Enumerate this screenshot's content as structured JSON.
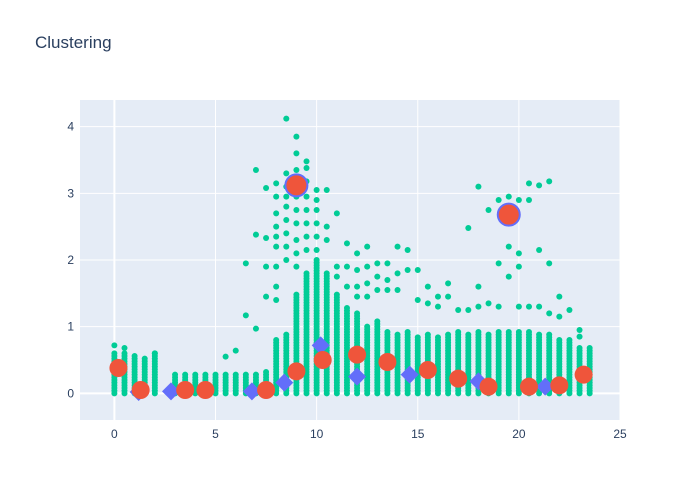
{
  "chart_data": {
    "type": "scatter",
    "title": "Clustering",
    "xlabel": "",
    "ylabel": "",
    "xlim": [
      -1.7,
      25
    ],
    "ylim": [
      -0.4,
      4.4
    ],
    "x_ticks": [
      0,
      5,
      10,
      15,
      20,
      25
    ],
    "y_ticks": [
      0,
      1,
      2,
      3,
      4
    ],
    "grid": true,
    "legend": "none",
    "colors": {
      "background": "#e5ecf6",
      "points": "#00cc96",
      "centroid_a": "#ef553b",
      "centroid_b": "#636efa",
      "text": "#2a3f5f"
    },
    "column_x": [
      0,
      0.5,
      1,
      1.5,
      2,
      3,
      3.5,
      4,
      4.5,
      5,
      5.5,
      6,
      6.5,
      7,
      7.5,
      8,
      8.5,
      9,
      9.5,
      10,
      10.5,
      11,
      11.5,
      12,
      12.5,
      13,
      13.5,
      14,
      14.5,
      15,
      15.5,
      16,
      16.5,
      17,
      17.5,
      18,
      18.5,
      19,
      19.5,
      20,
      20.5,
      21,
      21.5,
      22,
      22.5,
      23,
      23.5
    ],
    "column_top": [
      0.62,
      0.6,
      0.58,
      0.55,
      0.6,
      0.28,
      0.3,
      0.3,
      0.3,
      0.28,
      0.3,
      0.3,
      0.3,
      0.3,
      0.32,
      0.8,
      0.9,
      1.5,
      1.8,
      2.0,
      1.8,
      1.5,
      1.3,
      1.2,
      1.0,
      1.1,
      0.95,
      0.9,
      0.95,
      0.85,
      0.9,
      0.85,
      0.9,
      0.95,
      0.9,
      0.92,
      0.9,
      0.95,
      0.95,
      0.95,
      0.92,
      0.9,
      0.88,
      0.82,
      0.8,
      0.7,
      0.68
    ],
    "outliers": [
      [
        0,
        0.72
      ],
      [
        0.5,
        0.68
      ],
      [
        2,
        0.6
      ],
      [
        5.5,
        0.55
      ],
      [
        6,
        0.64
      ],
      [
        6.5,
        1.17
      ],
      [
        6.5,
        1.95
      ],
      [
        7,
        3.35
      ],
      [
        7,
        2.38
      ],
      [
        7,
        0.97
      ],
      [
        7.5,
        2.33
      ],
      [
        7.5,
        1.45
      ],
      [
        7.5,
        3.08
      ],
      [
        7.5,
        1.9
      ],
      [
        8,
        3.15
      ],
      [
        8,
        2.95
      ],
      [
        8,
        2.7
      ],
      [
        8,
        2.5
      ],
      [
        8,
        2.35
      ],
      [
        8,
        2.2
      ],
      [
        8,
        1.9
      ],
      [
        8,
        1.6
      ],
      [
        8,
        1.4
      ],
      [
        8.5,
        4.12
      ],
      [
        8.5,
        3.3
      ],
      [
        8.5,
        3.1
      ],
      [
        8.5,
        2.95
      ],
      [
        8.5,
        2.8
      ],
      [
        8.5,
        2.6
      ],
      [
        8.5,
        2.4
      ],
      [
        8.5,
        2.2
      ],
      [
        8.5,
        2.0
      ],
      [
        9,
        3.85
      ],
      [
        9,
        3.6
      ],
      [
        9,
        3.35
      ],
      [
        9,
        3.2
      ],
      [
        9,
        2.95
      ],
      [
        9,
        2.75
      ],
      [
        9,
        2.55
      ],
      [
        9,
        2.3
      ],
      [
        9,
        2.1
      ],
      [
        9,
        1.9
      ],
      [
        9.5,
        3.48
      ],
      [
        9.5,
        3.38
      ],
      [
        9.5,
        3.18
      ],
      [
        9.5,
        2.95
      ],
      [
        9.5,
        2.75
      ],
      [
        9.5,
        2.55
      ],
      [
        9.5,
        2.35
      ],
      [
        9.5,
        2.15
      ],
      [
        10,
        3.05
      ],
      [
        10,
        2.9
      ],
      [
        10,
        2.75
      ],
      [
        10,
        2.55
      ],
      [
        10,
        2.35
      ],
      [
        10,
        2.15
      ],
      [
        10.5,
        3.05
      ],
      [
        10.5,
        2.5
      ],
      [
        10.5,
        2.3
      ],
      [
        11,
        2.7
      ],
      [
        11,
        1.9
      ],
      [
        11,
        1.75
      ],
      [
        11.5,
        2.25
      ],
      [
        11.5,
        1.9
      ],
      [
        11.5,
        1.6
      ],
      [
        12,
        2.1
      ],
      [
        12,
        1.85
      ],
      [
        12,
        1.6
      ],
      [
        12,
        1.45
      ],
      [
        12.5,
        2.2
      ],
      [
        12.5,
        1.9
      ],
      [
        12.5,
        1.65
      ],
      [
        12.5,
        1.45
      ],
      [
        13,
        1.95
      ],
      [
        13,
        1.75
      ],
      [
        13,
        1.55
      ],
      [
        13.5,
        1.95
      ],
      [
        13.5,
        1.7
      ],
      [
        13.5,
        1.55
      ],
      [
        14,
        2.2
      ],
      [
        14,
        1.8
      ],
      [
        14,
        1.55
      ],
      [
        14.5,
        2.15
      ],
      [
        14.5,
        1.85
      ],
      [
        15,
        1.85
      ],
      [
        15,
        1.4
      ],
      [
        15.5,
        1.6
      ],
      [
        15.5,
        1.35
      ],
      [
        16,
        1.45
      ],
      [
        16,
        1.3
      ],
      [
        16.5,
        1.65
      ],
      [
        16.5,
        1.45
      ],
      [
        17,
        1.25
      ],
      [
        17.5,
        2.48
      ],
      [
        17.5,
        1.25
      ],
      [
        18,
        3.1
      ],
      [
        18,
        1.6
      ],
      [
        18,
        1.3
      ],
      [
        18.5,
        2.75
      ],
      [
        18.5,
        1.35
      ],
      [
        19,
        2.9
      ],
      [
        19,
        1.95
      ],
      [
        19,
        1.3
      ],
      [
        19.5,
        2.95
      ],
      [
        19.5,
        2.2
      ],
      [
        19.5,
        1.75
      ],
      [
        20,
        2.9
      ],
      [
        20,
        2.1
      ],
      [
        20,
        1.9
      ],
      [
        20,
        1.3
      ],
      [
        20.5,
        3.15
      ],
      [
        20.5,
        2.9
      ],
      [
        20.5,
        1.3
      ],
      [
        21,
        3.12
      ],
      [
        21,
        2.15
      ],
      [
        21,
        1.3
      ],
      [
        21.5,
        3.18
      ],
      [
        21.5,
        1.95
      ],
      [
        21.5,
        1.2
      ],
      [
        22,
        1.45
      ],
      [
        22,
        1.15
      ],
      [
        22.5,
        1.25
      ],
      [
        23,
        0.95
      ],
      [
        23,
        0.85
      ]
    ],
    "centroids": [
      {
        "x": 0.2,
        "y": 0.38,
        "size": "medium",
        "color": "centroid_a"
      },
      {
        "x": 1.3,
        "y": 0.05,
        "size": "medium",
        "color": "centroid_a"
      },
      {
        "x": 3.5,
        "y": 0.05,
        "size": "medium",
        "color": "centroid_a"
      },
      {
        "x": 4.5,
        "y": 0.05,
        "size": "medium",
        "color": "centroid_a"
      },
      {
        "x": 7.5,
        "y": 0.05,
        "size": "medium",
        "color": "centroid_a"
      },
      {
        "x": 9.0,
        "y": 3.12,
        "size": "large",
        "color": "centroid_a"
      },
      {
        "x": 9.0,
        "y": 0.33,
        "size": "medium",
        "color": "centroid_a"
      },
      {
        "x": 10.3,
        "y": 0.5,
        "size": "medium",
        "color": "centroid_a"
      },
      {
        "x": 12.0,
        "y": 0.58,
        "size": "medium",
        "color": "centroid_a"
      },
      {
        "x": 13.5,
        "y": 0.47,
        "size": "medium",
        "color": "centroid_a"
      },
      {
        "x": 15.5,
        "y": 0.35,
        "size": "medium",
        "color": "centroid_a"
      },
      {
        "x": 17.0,
        "y": 0.22,
        "size": "medium",
        "color": "centroid_a"
      },
      {
        "x": 18.5,
        "y": 0.1,
        "size": "medium",
        "color": "centroid_a"
      },
      {
        "x": 19.5,
        "y": 2.68,
        "size": "large",
        "color": "centroid_a"
      },
      {
        "x": 20.5,
        "y": 0.1,
        "size": "medium",
        "color": "centroid_a"
      },
      {
        "x": 22.0,
        "y": 0.12,
        "size": "medium",
        "color": "centroid_a"
      },
      {
        "x": 23.2,
        "y": 0.28,
        "size": "medium",
        "color": "centroid_a"
      },
      {
        "x": 1.2,
        "y": 0.02,
        "size": "medium",
        "color": "centroid_b"
      },
      {
        "x": 2.8,
        "y": 0.03,
        "size": "medium",
        "color": "centroid_b"
      },
      {
        "x": 6.8,
        "y": 0.03,
        "size": "medium",
        "color": "centroid_b"
      },
      {
        "x": 8.4,
        "y": 0.16,
        "size": "medium",
        "color": "centroid_b"
      },
      {
        "x": 10.2,
        "y": 0.72,
        "size": "medium",
        "color": "centroid_b"
      },
      {
        "x": 12.0,
        "y": 0.25,
        "size": "medium",
        "color": "centroid_b"
      },
      {
        "x": 14.6,
        "y": 0.28,
        "size": "medium",
        "color": "centroid_b"
      },
      {
        "x": 18.0,
        "y": 0.18,
        "size": "medium",
        "color": "centroid_b"
      },
      {
        "x": 21.3,
        "y": 0.1,
        "size": "medium",
        "color": "centroid_b"
      }
    ]
  }
}
